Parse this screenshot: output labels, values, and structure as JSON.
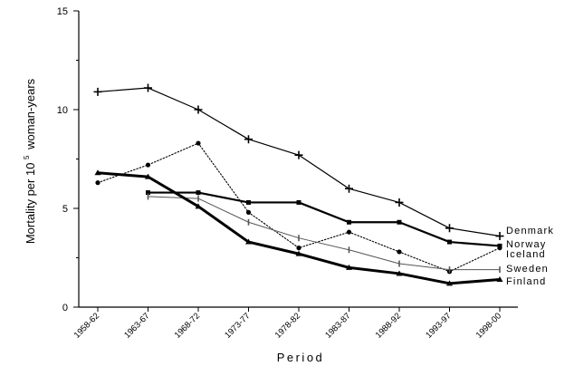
{
  "chart_data": {
    "type": "line",
    "title": "",
    "xlabel": "Period",
    "ylabel_main": "Mortality per 10",
    "ylabel_sup": "5",
    "ylabel_tail": "woman-years",
    "ylim": [
      0,
      15
    ],
    "yticks": [
      "0",
      "5",
      "10",
      "15"
    ],
    "grid": false,
    "legend_position": "right-end-of-lines",
    "categories": [
      "1958-62",
      "1963-67",
      "1968-72",
      "1973-77",
      "1978-82",
      "1983-87",
      "1988-92",
      "1993-97",
      "1998-00"
    ],
    "series": [
      {
        "name": "Denmark",
        "values": [
          10.9,
          11.1,
          10.0,
          8.5,
          7.7,
          6.0,
          5.3,
          4.0,
          3.6
        ],
        "style": "thin-solid",
        "marker": "plus",
        "color": "#000000"
      },
      {
        "name": "Norway",
        "values": [
          null,
          5.8,
          5.8,
          5.3,
          5.3,
          4.3,
          4.3,
          3.3,
          3.1
        ],
        "style": "thick-solid",
        "marker": "square",
        "color": "#000000"
      },
      {
        "name": "Iceland",
        "values": [
          6.3,
          7.2,
          8.3,
          4.8,
          3.0,
          3.8,
          2.8,
          1.8,
          3.0
        ],
        "style": "dotted",
        "marker": "circle",
        "color": "#000000"
      },
      {
        "name": "Sweden",
        "values": [
          null,
          5.6,
          5.5,
          4.3,
          3.5,
          2.9,
          2.2,
          1.9,
          1.9
        ],
        "style": "thin-solid-gray",
        "marker": "bar",
        "color": "#555555"
      },
      {
        "name": "Finland",
        "values": [
          6.8,
          6.6,
          5.1,
          3.3,
          2.7,
          2.0,
          1.7,
          1.2,
          1.4
        ],
        "style": "extra-thick-solid",
        "marker": "triangle",
        "color": "#000000"
      }
    ]
  }
}
